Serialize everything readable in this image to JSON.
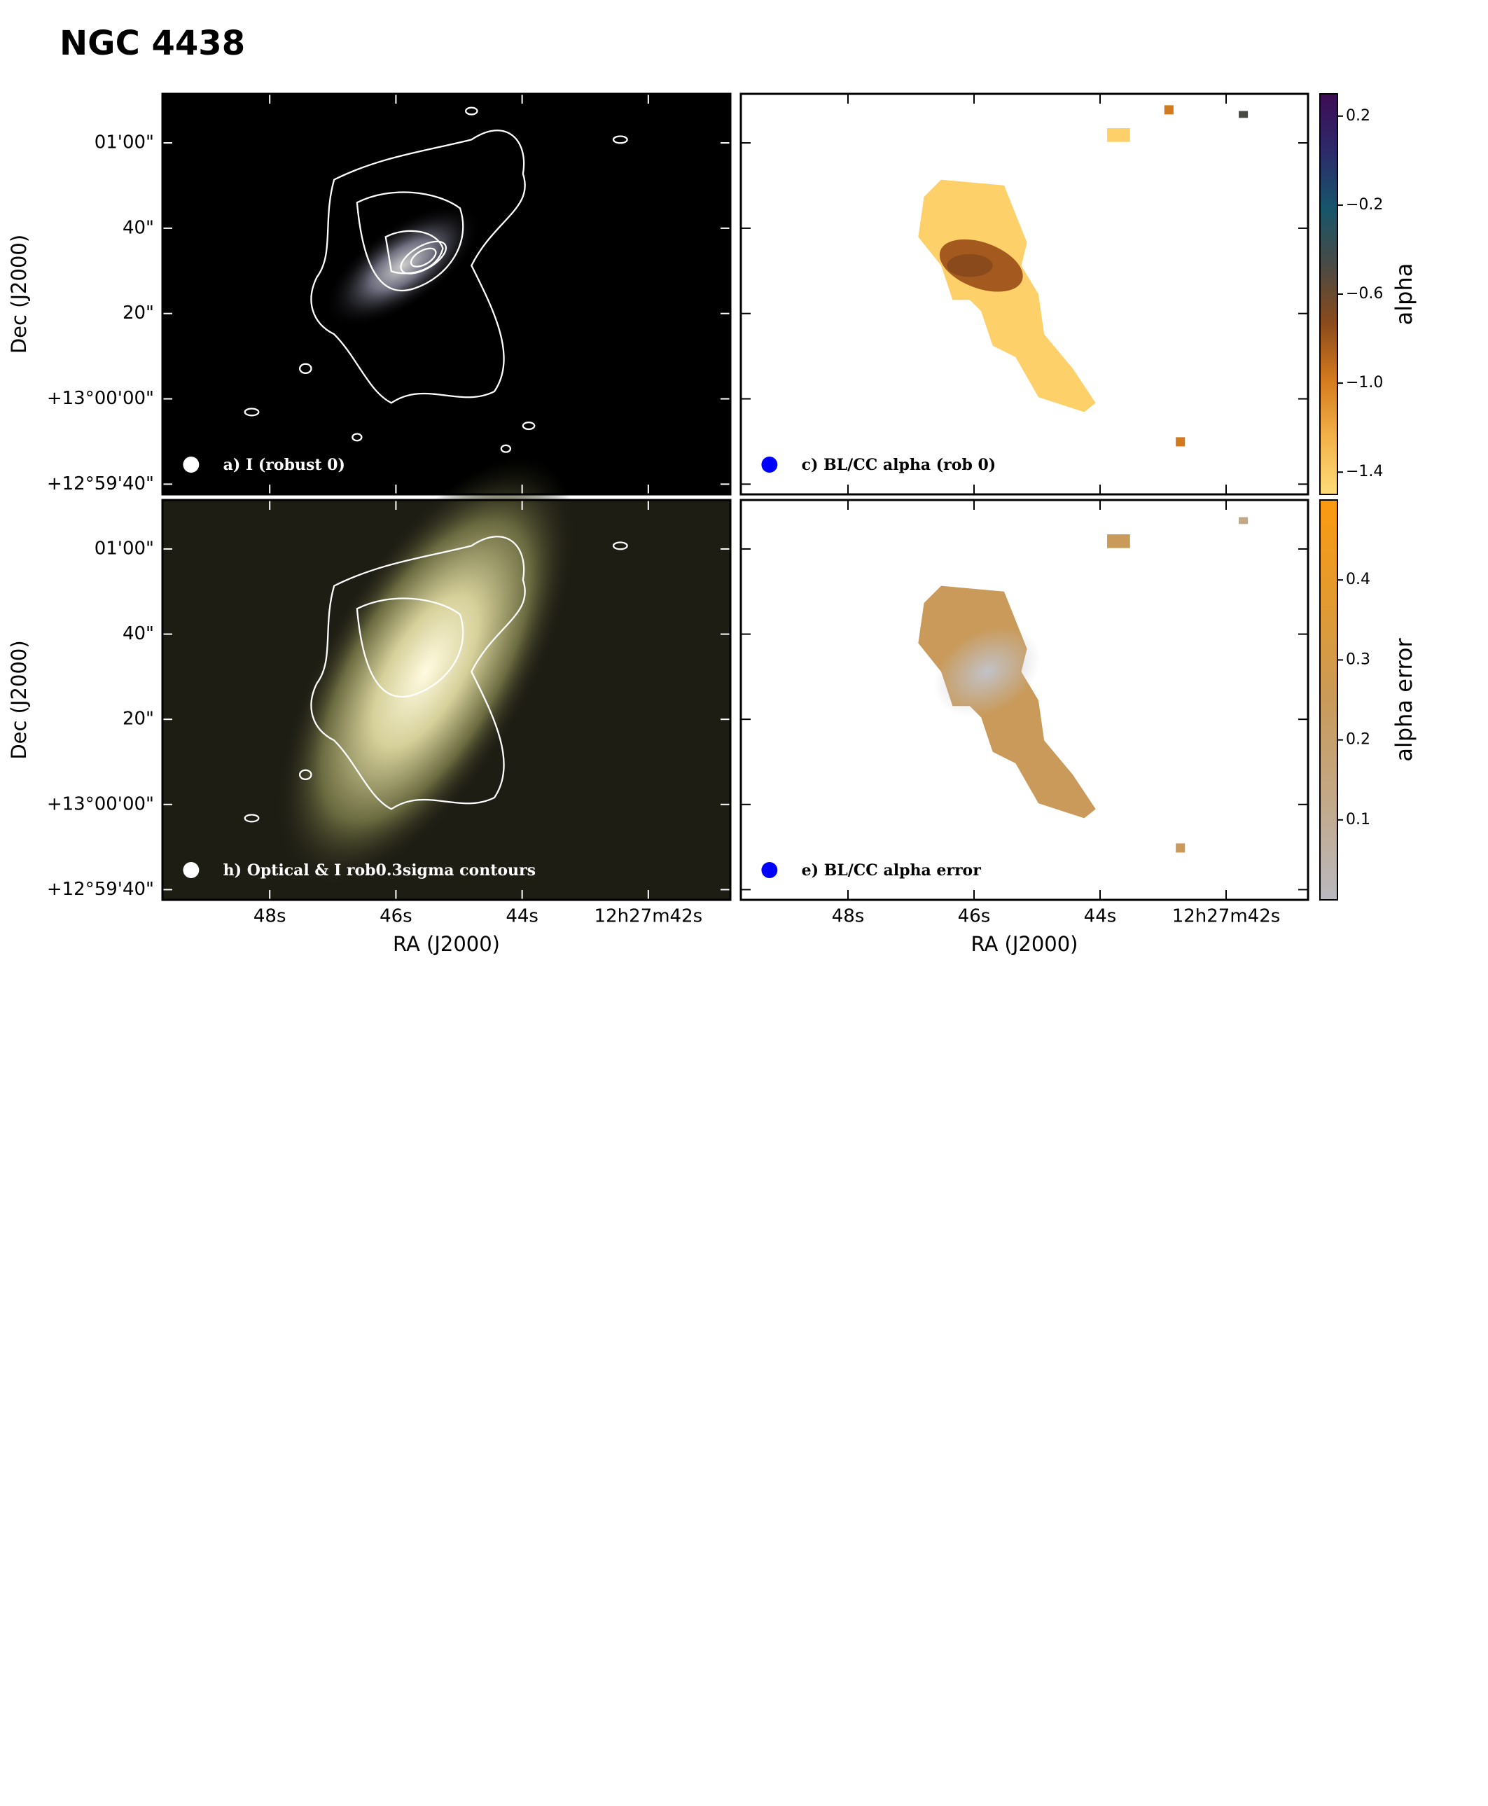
{
  "chart_data": {
    "type": "image-grid",
    "title": "NGC 4438",
    "xlabel": "RA (J2000)",
    "ylabel": "Dec (J2000)",
    "xlim": [
      49.7,
      40.7
    ],
    "xticks": [
      {
        "value": 48,
        "label": "48s"
      },
      {
        "value": 46,
        "label": "46s"
      },
      {
        "value": 44,
        "label": "44s"
      },
      {
        "value": 42,
        "label": "12h27m42s"
      }
    ],
    "ylim": [
      -22.4,
      71.5
    ],
    "yticks": [
      {
        "value": 60,
        "label": "01'00\""
      },
      {
        "value": 40,
        "label": "40\""
      },
      {
        "value": 20,
        "label": "20\""
      },
      {
        "value": 0,
        "label": "+13°00'00\""
      },
      {
        "value": -20,
        "label": "+12°59'40\""
      }
    ],
    "panels": [
      {
        "label": "a) I (robust 0)",
        "beam_color": "#ffffff"
      },
      {
        "label": "c) BL/CC alpha (rob 0)",
        "beam_color": "#0000ff",
        "colorbar": {
          "label": "alpha",
          "lim": [
            -1.5,
            0.3
          ],
          "colormap": [
            "#fddc7a",
            "#f3b24a",
            "#d47a1e",
            "#8a4a1c",
            "#4a4a44",
            "#17556b",
            "#2d2a6a",
            "#3d0c55"
          ],
          "ticks": [
            0.2,
            {
              "value": -0.2,
              "label": "−0.2"
            },
            {
              "value": -0.6,
              "label": "−0.6"
            },
            {
              "value": -1.0,
              "label": "−1.0"
            },
            {
              "value": -1.4,
              "label": "−1.4"
            }
          ]
        }
      },
      {
        "label": "h) Optical & I rob0.3sigma contours",
        "beam_color": "#ffffff"
      },
      {
        "label": "e) BL/CC alpha error",
        "beam_color": "#0000ff",
        "colorbar": {
          "label": "alpha error",
          "lim": [
            0,
            0.5
          ],
          "colormap": [
            "#b9b9c0",
            "#c3a888",
            "#c99a5a",
            "#e39a30",
            "#fb9a10"
          ],
          "ticks": [
            0.1,
            0.2,
            0.3,
            0.4
          ]
        }
      }
    ]
  }
}
